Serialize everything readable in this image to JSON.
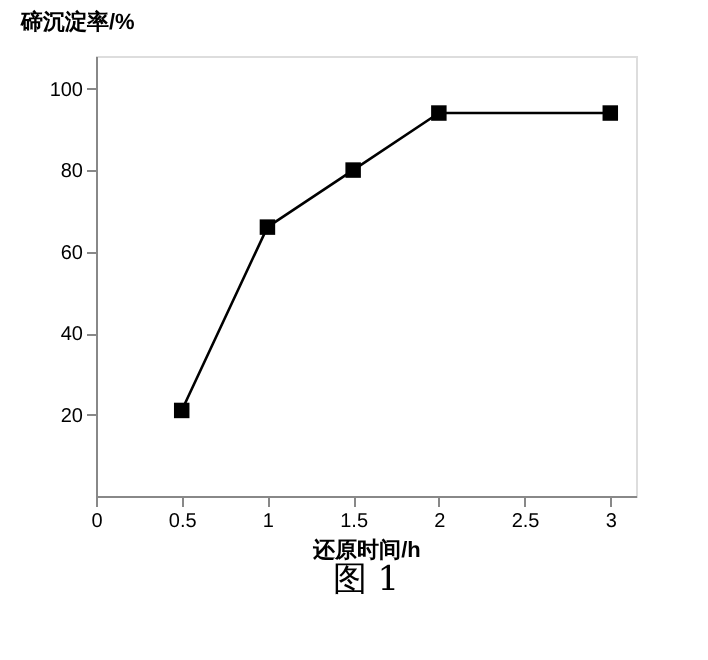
{
  "chart_data": {
    "type": "line",
    "x": [
      0.5,
      1,
      1.5,
      2,
      3
    ],
    "series": [
      {
        "color": "#000000",
        "values": [
          21,
          66,
          80,
          94,
          94
        ]
      }
    ],
    "xlabel": "还原时间/h",
    "ylabel": "碲沉淀率/%",
    "annotations": [
      "图 1"
    ],
    "xlim": [
      0,
      3.15
    ],
    "xticks": [
      0,
      0.5,
      1,
      1.5,
      2,
      2.5,
      3
    ],
    "ylim": [
      0,
      108
    ],
    "yticks": [
      20,
      40,
      60,
      80,
      100
    ],
    "grid": false,
    "legend": false,
    "marker": "square",
    "line_style": "solid"
  }
}
